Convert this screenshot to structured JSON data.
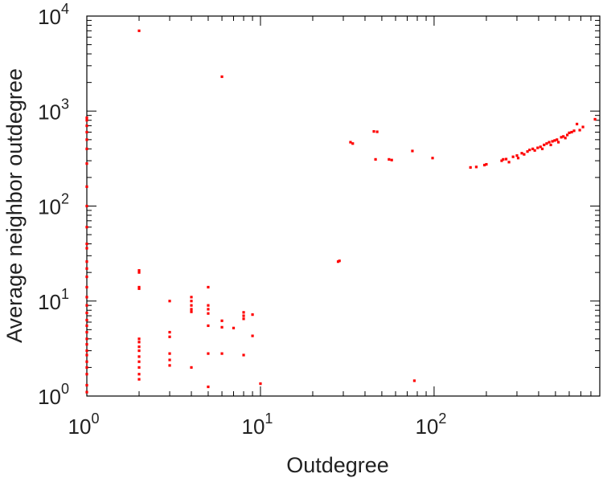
{
  "chart_data": {
    "type": "scatter",
    "title": "",
    "xlabel": "Outdegree",
    "ylabel": "Average neighbor outdegree",
    "xscale": "log",
    "yscale": "log",
    "xlim": [
      1,
      900
    ],
    "ylim": [
      1,
      10000
    ],
    "grid": false,
    "marker_color": "#ff0000",
    "x_tick_labels": [
      {
        "base": "10",
        "exp": "0"
      },
      {
        "base": "10",
        "exp": "1"
      },
      {
        "base": "10",
        "exp": "2"
      }
    ],
    "y_tick_labels": [
      {
        "base": "10",
        "exp": "0"
      },
      {
        "base": "10",
        "exp": "1"
      },
      {
        "base": "10",
        "exp": "2"
      },
      {
        "base": "10",
        "exp": "3"
      },
      {
        "base": "10",
        "exp": "4"
      }
    ],
    "points": [
      [
        1,
        1.1
      ],
      [
        1,
        1.3
      ],
      [
        1,
        1.7
      ],
      [
        1,
        2.0
      ],
      [
        1,
        2.3
      ],
      [
        1,
        2.7
      ],
      [
        1,
        3.0
      ],
      [
        1,
        3.5
      ],
      [
        1,
        4.0
      ],
      [
        1,
        4.7
      ],
      [
        1,
        5.5
      ],
      [
        1,
        6.3
      ],
      [
        1,
        7.5
      ],
      [
        1,
        9.0
      ],
      [
        1,
        11
      ],
      [
        1,
        14
      ],
      [
        1,
        18
      ],
      [
        1,
        22
      ],
      [
        1,
        26
      ],
      [
        1,
        36
      ],
      [
        1,
        40
      ],
      [
        1,
        60
      ],
      [
        1,
        100
      ],
      [
        1,
        160
      ],
      [
        1,
        280
      ],
      [
        1,
        400
      ],
      [
        1,
        500
      ],
      [
        1,
        600
      ],
      [
        1,
        700
      ],
      [
        1,
        800
      ],
      [
        1,
        850
      ],
      [
        2,
        7000
      ],
      [
        2,
        21
      ],
      [
        2,
        20
      ],
      [
        2,
        14
      ],
      [
        2,
        13.5
      ],
      [
        2,
        4.0
      ],
      [
        2,
        3.7
      ],
      [
        2,
        3.3
      ],
      [
        2,
        3.0
      ],
      [
        2,
        2.6
      ],
      [
        2,
        2.3
      ],
      [
        2,
        2.0
      ],
      [
        2,
        1.7
      ],
      [
        2,
        1.5
      ],
      [
        3,
        10
      ],
      [
        3,
        4.7
      ],
      [
        3,
        4.2
      ],
      [
        3,
        2.8
      ],
      [
        3,
        2.4
      ],
      [
        3,
        2.1
      ],
      [
        4,
        11
      ],
      [
        4,
        10
      ],
      [
        4,
        9.0
      ],
      [
        4,
        8.2
      ],
      [
        4,
        7.7
      ],
      [
        4,
        2.0
      ],
      [
        5,
        14
      ],
      [
        5,
        9.0
      ],
      [
        5,
        8.2
      ],
      [
        5,
        7.4
      ],
      [
        5,
        5.5
      ],
      [
        5,
        2.8
      ],
      [
        5,
        1.25
      ],
      [
        6,
        2300
      ],
      [
        6,
        6.2
      ],
      [
        6,
        5.3
      ],
      [
        6,
        2.8
      ],
      [
        7,
        5.2
      ],
      [
        8,
        7.6
      ],
      [
        8,
        7.0
      ],
      [
        8,
        6.5
      ],
      [
        8,
        2.7
      ],
      [
        9,
        7.2
      ],
      [
        9,
        4.3
      ],
      [
        10,
        1.35
      ],
      [
        28,
        26
      ],
      [
        28.5,
        26.5
      ],
      [
        33,
        470
      ],
      [
        34,
        455
      ],
      [
        45,
        610
      ],
      [
        47,
        605
      ],
      [
        46,
        310
      ],
      [
        55,
        310
      ],
      [
        57,
        305
      ],
      [
        75,
        380
      ],
      [
        77,
        1.45
      ],
      [
        98,
        320
      ],
      [
        162,
        255
      ],
      [
        175,
        258
      ],
      [
        195,
        270
      ],
      [
        200,
        275
      ],
      [
        245,
        300
      ],
      [
        250,
        310
      ],
      [
        260,
        312
      ],
      [
        270,
        290
      ],
      [
        285,
        330
      ],
      [
        300,
        340
      ],
      [
        305,
        320
      ],
      [
        320,
        360
      ],
      [
        330,
        350
      ],
      [
        345,
        375
      ],
      [
        355,
        390
      ],
      [
        370,
        400
      ],
      [
        380,
        385
      ],
      [
        395,
        410
      ],
      [
        410,
        420
      ],
      [
        420,
        400
      ],
      [
        430,
        440
      ],
      [
        445,
        455
      ],
      [
        460,
        470
      ],
      [
        470,
        440
      ],
      [
        480,
        480
      ],
      [
        495,
        490
      ],
      [
        510,
        500
      ],
      [
        520,
        470
      ],
      [
        540,
        530
      ],
      [
        555,
        540
      ],
      [
        570,
        520
      ],
      [
        585,
        560
      ],
      [
        600,
        590
      ],
      [
        620,
        600
      ],
      [
        640,
        620
      ],
      [
        665,
        730
      ],
      [
        690,
        630
      ],
      [
        720,
        680
      ],
      [
        845,
        820
      ]
    ]
  }
}
